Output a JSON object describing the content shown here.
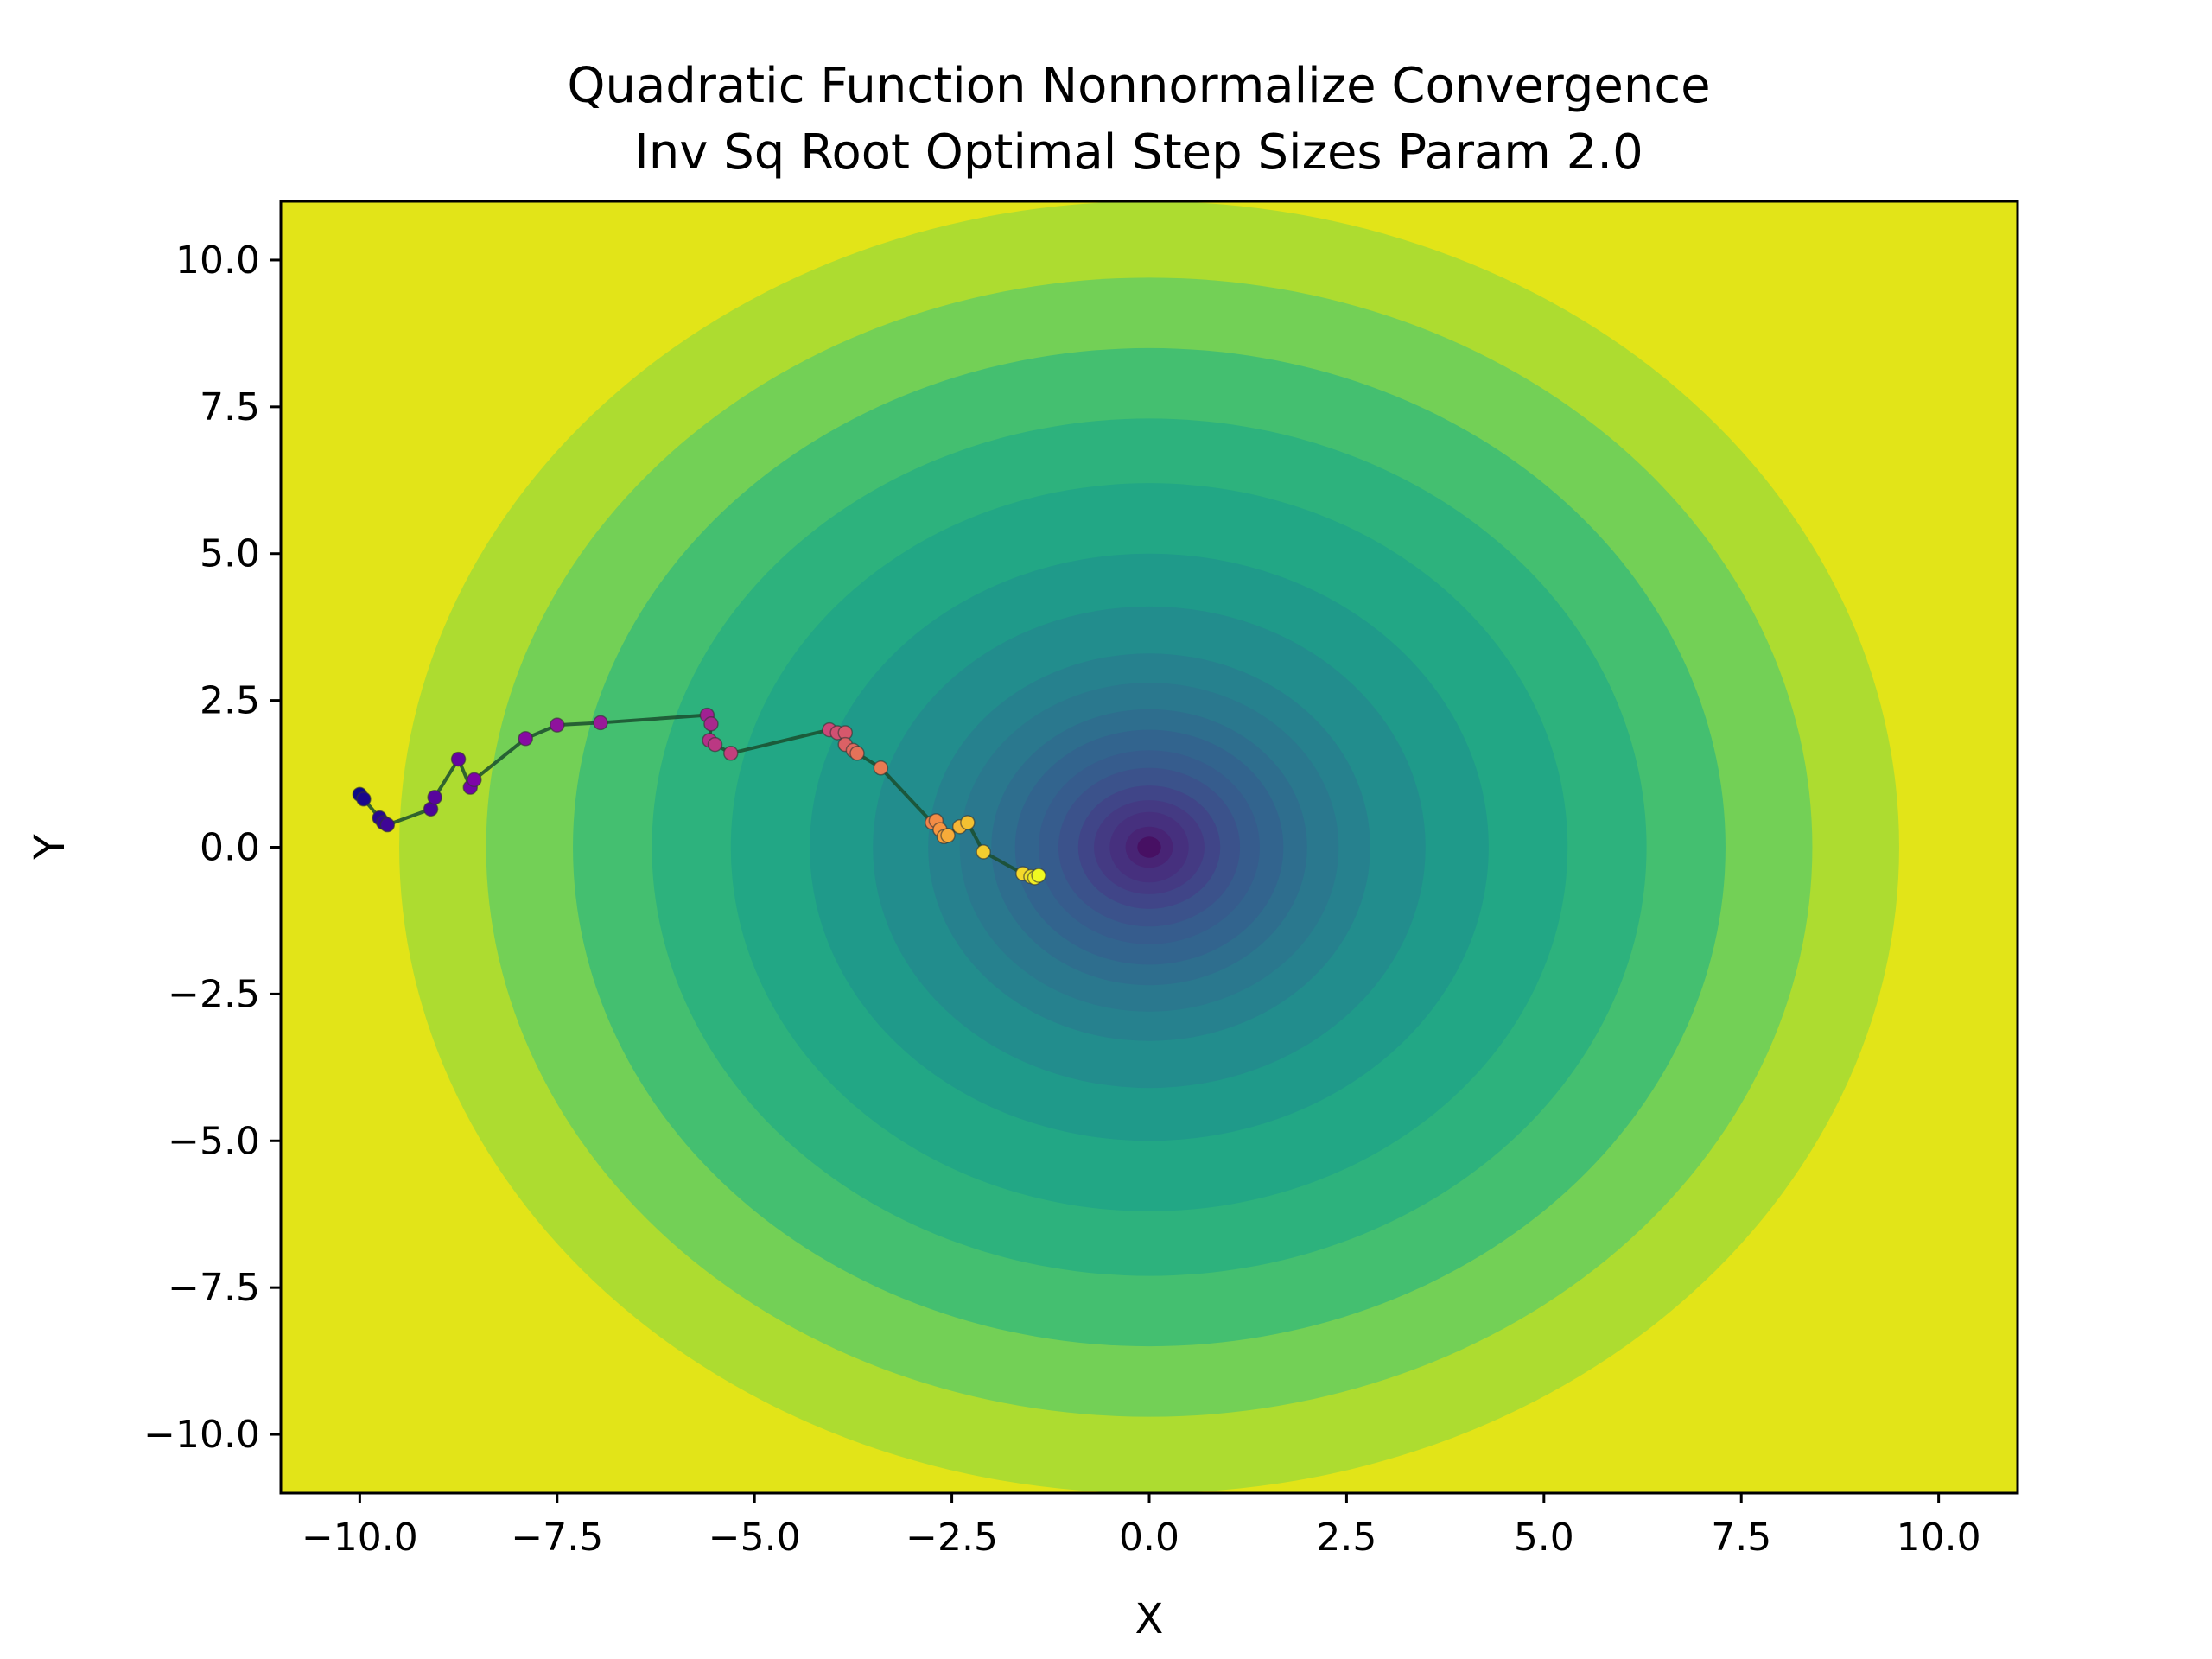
{
  "chart_data": {
    "type": "contour",
    "title": [
      "Quadratic Function Nonnormalize Convergence",
      "Inv Sq Root Optimal Step Sizes Param 2.0"
    ],
    "xlabel": "X",
    "ylabel": "Y",
    "xlim": [
      -11,
      11
    ],
    "ylim": [
      -11,
      11
    ],
    "x_ticks": [
      -10.0,
      -7.5,
      -5.0,
      -2.5,
      0.0,
      2.5,
      5.0,
      7.5,
      10.0
    ],
    "y_ticks": [
      -10.0,
      -7.5,
      -5.0,
      -2.5,
      0.0,
      2.5,
      5.0,
      7.5,
      10.0
    ],
    "x_tick_labels": [
      "−10.0",
      "−7.5",
      "−5.0",
      "−2.5",
      "0.0",
      "2.5",
      "5.0",
      "7.5",
      "10.0"
    ],
    "y_tick_labels": [
      "−10.0",
      "−7.5",
      "−5.0",
      "−2.5",
      "0.0",
      "2.5",
      "5.0",
      "7.5",
      "10.0"
    ],
    "contour": {
      "colormap": "viridis",
      "center": [
        0,
        0
      ],
      "level_semi_axes_x": [
        11.9,
        9.5,
        8.4,
        7.3,
        6.3,
        5.3,
        4.3,
        3.5,
        2.8,
        2.4,
        2.0,
        1.7,
        1.4,
        1.15,
        0.9,
        0.7,
        0.5,
        0.3,
        0.15
      ],
      "level_semi_axes_y": [
        13.9,
        11.0,
        9.7,
        8.5,
        7.3,
        6.2,
        5.0,
        4.1,
        3.3,
        2.8,
        2.35,
        2.0,
        1.65,
        1.35,
        1.05,
        0.8,
        0.6,
        0.35,
        0.18
      ],
      "fill_colors": [
        "#e2e418",
        "#addc30",
        "#73d056",
        "#44bf70",
        "#2db27d",
        "#22a785",
        "#1f9a8a",
        "#228d8d",
        "#26818e",
        "#2a788e",
        "#2e6e8e",
        "#32648e",
        "#365c8d",
        "#3b528b",
        "#404588",
        "#443a83",
        "#46307e",
        "#482475",
        "#471063"
      ]
    },
    "path": {
      "line_color": "#1a4d2e",
      "point_colormap": "plasma",
      "points": [
        [
          -10.0,
          0.9
        ],
        [
          -9.95,
          0.82
        ],
        [
          -9.75,
          0.5
        ],
        [
          -9.7,
          0.42
        ],
        [
          -9.65,
          0.38
        ],
        [
          -9.1,
          0.65
        ],
        [
          -9.05,
          0.85
        ],
        [
          -8.75,
          1.5
        ],
        [
          -8.6,
          1.02
        ],
        [
          -8.55,
          1.15
        ],
        [
          -7.9,
          1.85
        ],
        [
          -7.5,
          2.08
        ],
        [
          -6.95,
          2.12
        ],
        [
          -5.6,
          2.25
        ],
        [
          -5.55,
          2.1
        ],
        [
          -5.57,
          1.82
        ],
        [
          -5.5,
          1.75
        ],
        [
          -5.3,
          1.6
        ],
        [
          -4.05,
          2.0
        ],
        [
          -3.95,
          1.95
        ],
        [
          -3.85,
          1.95
        ],
        [
          -3.85,
          1.75
        ],
        [
          -3.75,
          1.65
        ],
        [
          -3.7,
          1.6
        ],
        [
          -3.4,
          1.35
        ],
        [
          -2.75,
          0.42
        ],
        [
          -2.7,
          0.45
        ],
        [
          -2.65,
          0.3
        ],
        [
          -2.6,
          0.18
        ],
        [
          -2.55,
          0.2
        ],
        [
          -2.4,
          0.35
        ],
        [
          -2.3,
          0.42
        ],
        [
          -2.1,
          -0.08
        ],
        [
          -1.6,
          -0.45
        ],
        [
          -1.5,
          -0.5
        ],
        [
          -1.45,
          -0.52
        ],
        [
          -1.4,
          -0.48
        ]
      ]
    },
    "grid": false,
    "legend": "none"
  }
}
